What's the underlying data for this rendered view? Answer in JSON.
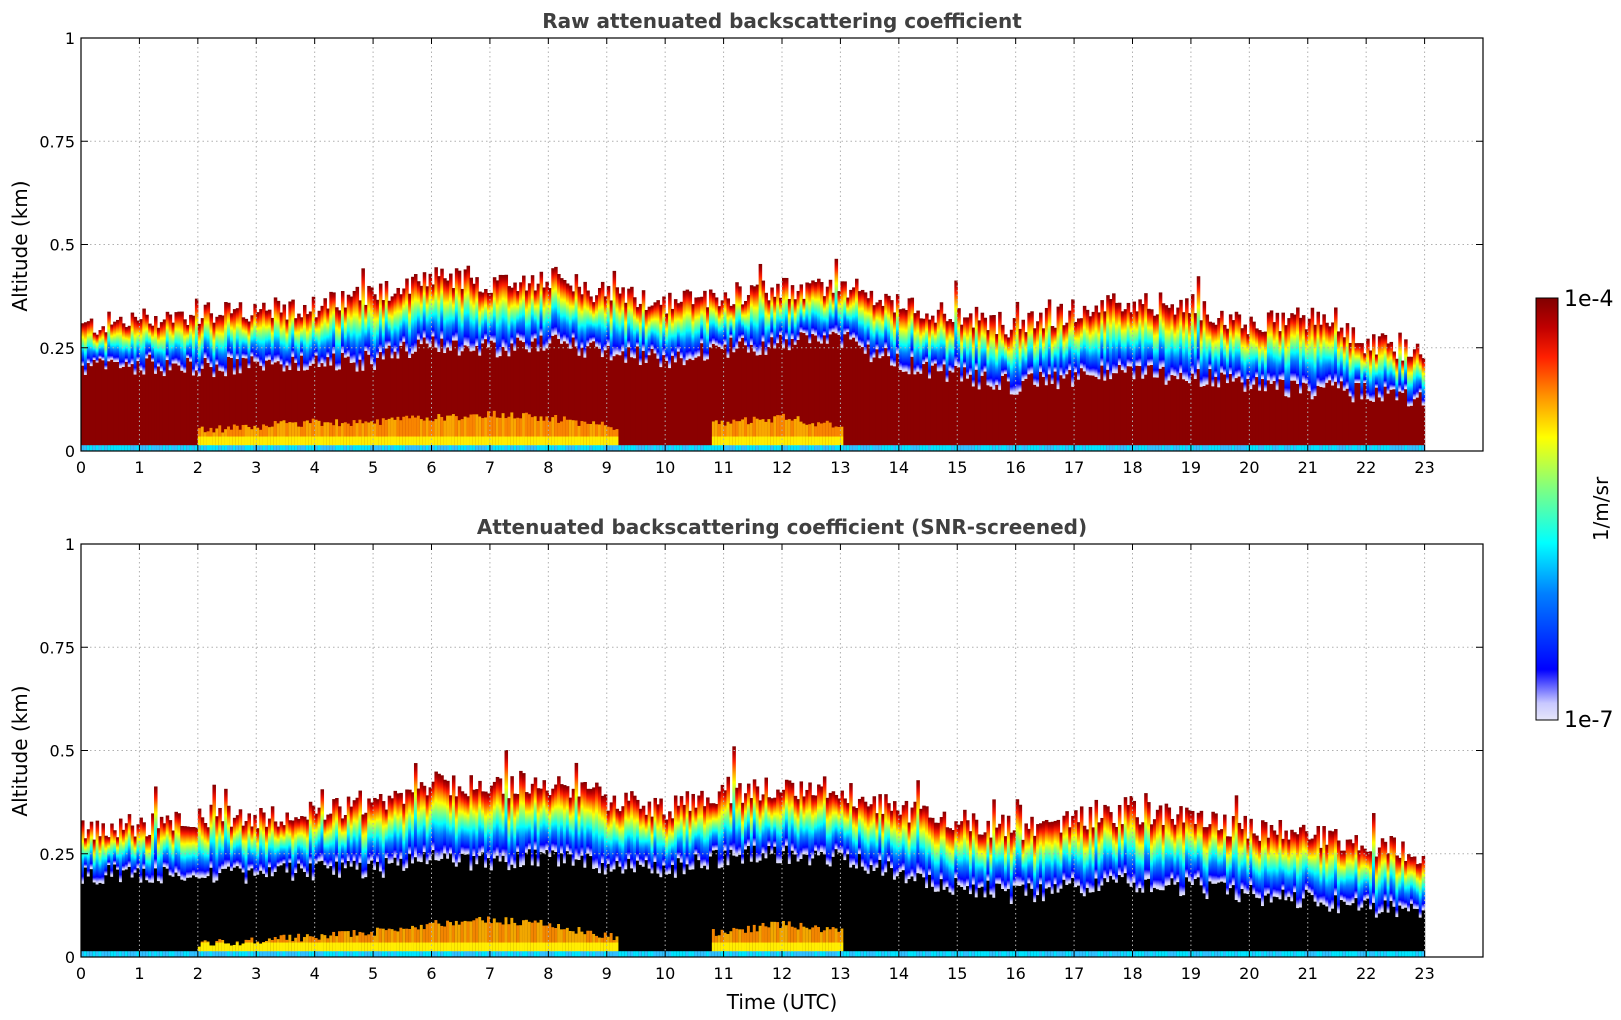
{
  "chart_data": [
    {
      "type": "heatmap",
      "title": "Raw attenuated backscattering coefficient",
      "xlabel": "",
      "ylabel": "Altitude (km)",
      "xlim": [
        0,
        24
      ],
      "ylim": [
        0,
        1
      ],
      "x_ticks": [
        "0",
        "1",
        "2",
        "3",
        "4",
        "5",
        "6",
        "7",
        "8",
        "9",
        "10",
        "11",
        "12",
        "13",
        "14",
        "15",
        "16",
        "17",
        "18",
        "19",
        "20",
        "21",
        "22",
        "23"
      ],
      "y_ticks": [
        "0",
        "0.25",
        "0.5",
        "0.75",
        "1"
      ],
      "data_extent_hours": [
        0,
        23
      ],
      "grid": true,
      "colormap": "jet",
      "color_scale": "log",
      "color_range": [
        1e-07,
        0.0001
      ],
      "layer_top_km": {
        "hours": [
          0,
          1,
          2,
          3,
          4,
          5,
          6,
          7,
          8,
          9,
          10,
          11,
          12,
          13,
          14,
          15,
          16,
          17,
          18,
          19,
          20,
          21,
          22,
          23
        ],
        "values": [
          0.3,
          0.32,
          0.33,
          0.34,
          0.35,
          0.38,
          0.43,
          0.41,
          0.42,
          0.38,
          0.36,
          0.38,
          0.39,
          0.4,
          0.35,
          0.33,
          0.3,
          0.34,
          0.36,
          0.35,
          0.31,
          0.32,
          0.26,
          0.24
        ]
      },
      "near_saturation_top_km": {
        "hours": [
          0,
          1,
          2,
          3,
          4,
          5,
          6,
          7,
          8,
          9,
          10,
          11,
          12,
          13,
          14,
          15,
          16,
          17,
          18,
          19,
          20,
          21,
          22,
          23
        ],
        "values": [
          0.2,
          0.21,
          0.2,
          0.21,
          0.21,
          0.22,
          0.26,
          0.25,
          0.26,
          0.24,
          0.22,
          0.25,
          0.26,
          0.27,
          0.21,
          0.18,
          0.16,
          0.18,
          0.19,
          0.18,
          0.16,
          0.15,
          0.14,
          0.12
        ]
      },
      "lower_enhanced_band_km": {
        "hours": [
          2,
          3,
          4,
          5,
          6,
          7,
          8,
          9,
          11,
          12,
          13
        ],
        "values": [
          0.05,
          0.06,
          0.07,
          0.07,
          0.08,
          0.09,
          0.08,
          0.06,
          0.07,
          0.08,
          0.06
        ]
      }
    },
    {
      "type": "heatmap",
      "title": "Attenuated backscattering coefficient (SNR-screened)",
      "xlabel": "Time (UTC)",
      "ylabel": "Altitude (km)",
      "xlim": [
        0,
        24
      ],
      "ylim": [
        0,
        1
      ],
      "x_ticks": [
        "0",
        "1",
        "2",
        "3",
        "4",
        "5",
        "6",
        "7",
        "8",
        "9",
        "10",
        "11",
        "12",
        "13",
        "14",
        "15",
        "16",
        "17",
        "18",
        "19",
        "20",
        "21",
        "22",
        "23"
      ],
      "y_ticks": [
        "0",
        "0.25",
        "0.5",
        "0.75",
        "1"
      ],
      "data_extent_hours": [
        0,
        23
      ],
      "grid": true,
      "colormap": "jet",
      "color_scale": "log",
      "color_range": [
        1e-07,
        0.0001
      ],
      "saturated_color": "#000000",
      "layer_top_km": {
        "hours": [
          0,
          1,
          2,
          3,
          4,
          5,
          6,
          7,
          8,
          9,
          10,
          11,
          12,
          13,
          14,
          15,
          16,
          17,
          18,
          19,
          20,
          21,
          22,
          23
        ],
        "values": [
          0.31,
          0.32,
          0.34,
          0.34,
          0.35,
          0.37,
          0.42,
          0.41,
          0.42,
          0.38,
          0.36,
          0.4,
          0.41,
          0.4,
          0.36,
          0.33,
          0.31,
          0.33,
          0.35,
          0.34,
          0.31,
          0.3,
          0.27,
          0.25
        ]
      },
      "saturation_top_km": {
        "hours": [
          0,
          1,
          2,
          3,
          4,
          5,
          6,
          7,
          8,
          9,
          10,
          11,
          12,
          13,
          14,
          15,
          16,
          17,
          18,
          19,
          20,
          21,
          22,
          23
        ],
        "values": [
          0.2,
          0.2,
          0.19,
          0.2,
          0.21,
          0.21,
          0.24,
          0.23,
          0.24,
          0.22,
          0.21,
          0.24,
          0.25,
          0.24,
          0.2,
          0.17,
          0.15,
          0.17,
          0.18,
          0.17,
          0.15,
          0.14,
          0.12,
          0.11
        ]
      },
      "lower_enhanced_band_km": {
        "hours": [
          2,
          3,
          4,
          5,
          6,
          7,
          8,
          9,
          11,
          12,
          13
        ],
        "values": [
          0.03,
          0.04,
          0.05,
          0.06,
          0.08,
          0.09,
          0.08,
          0.05,
          0.06,
          0.08,
          0.06
        ]
      }
    }
  ],
  "colorbar": {
    "label": "1/m/sr",
    "max_label": "1e-4",
    "min_label": "1e-7",
    "colors": [
      "#e6e6fa",
      "#0000ff",
      "#00ffff",
      "#ffff00",
      "#ff7f00",
      "#ff0000",
      "#800000"
    ]
  }
}
